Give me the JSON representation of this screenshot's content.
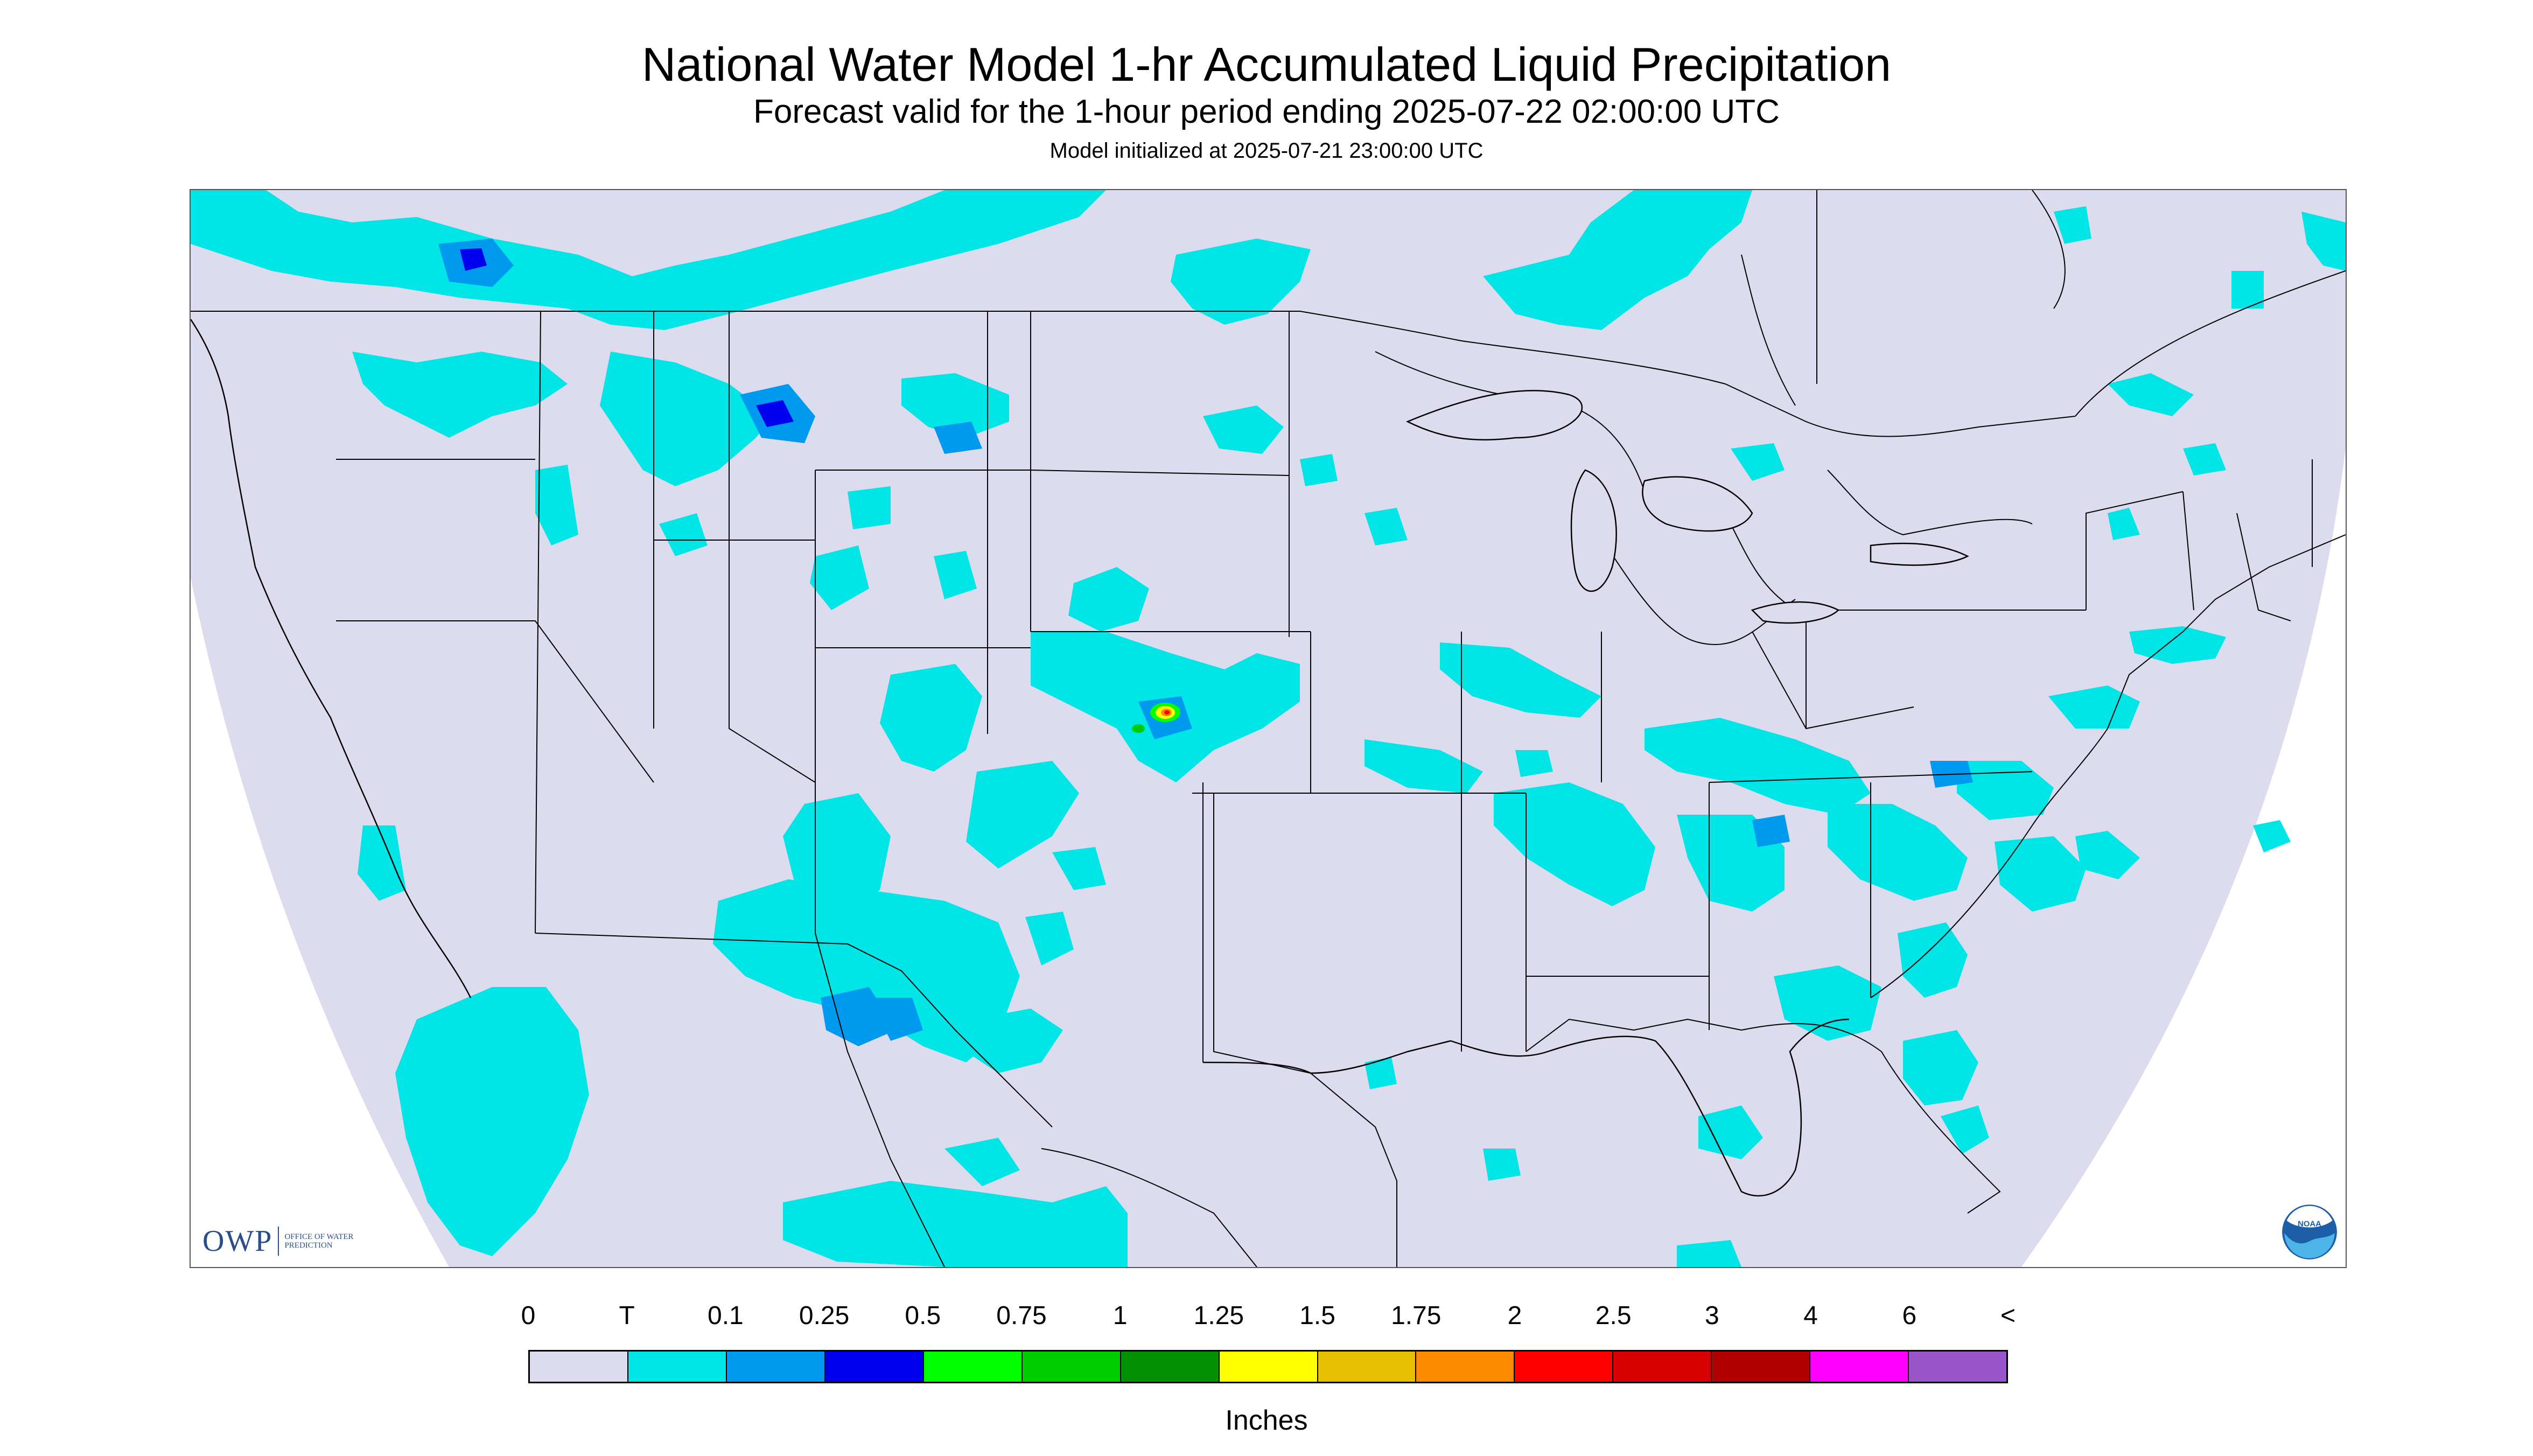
{
  "header": {
    "title": "National Water Model 1-hr Accumulated Liquid Precipitation",
    "subtitle": "Forecast valid for the 1-hour period ending 2025-07-22 02:00:00 UTC",
    "init": "Model initialized at 2025-07-21 23:00:00 UTC"
  },
  "logos": {
    "owp_mark": "OWP",
    "owp_text": "OFFICE OF WATER PREDICTION",
    "noaa_text": "NOAA"
  },
  "legend": {
    "labels": [
      "0",
      "T",
      "0.1",
      "0.25",
      "0.5",
      "0.75",
      "1",
      "1.25",
      "1.5",
      "1.75",
      "2",
      "2.5",
      "3",
      "4",
      "6",
      "<"
    ],
    "colors": [
      "#dcdcee",
      "#00e5e5",
      "#0099f0",
      "#0000ee",
      "#00ff00",
      "#00cc00",
      "#009000",
      "#ffff00",
      "#e6c000",
      "#ff8c00",
      "#ff0000",
      "#d60000",
      "#b00000",
      "#ff00ff",
      "#9955cc"
    ],
    "units": "Inches"
  },
  "map": {
    "background_color": "#dcdcee",
    "outside_color": "#ffffff",
    "boundary_color": "#000000"
  }
}
